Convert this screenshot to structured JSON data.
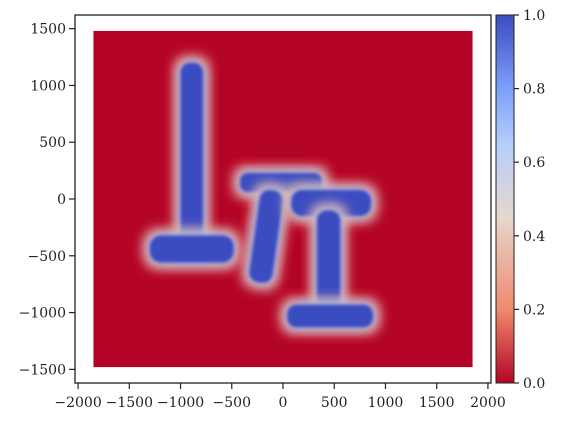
{
  "chart_data": {
    "type": "heatmap",
    "title": "",
    "xlabel": "",
    "ylabel": "",
    "xlim": [
      -2030,
      2030
    ],
    "ylim": [
      -1620,
      1620
    ],
    "xticks": [
      -2000,
      -1500,
      -1000,
      -500,
      0,
      500,
      1000,
      1500,
      2000
    ],
    "yticks": [
      -1500,
      -1000,
      -500,
      0,
      500,
      1000,
      1500
    ],
    "x_tick_labels": [
      "−2000",
      "−1500",
      "−1000",
      "−500",
      "0",
      "500",
      "1000",
      "1500",
      "2000"
    ],
    "y_tick_labels": [
      "−1500",
      "−1000",
      "−500",
      "0",
      "500",
      "1000",
      "1500"
    ],
    "data_extent": {
      "x": [
        -1850,
        1850
      ],
      "y": [
        -1480,
        1480
      ]
    },
    "background_value": 0.0,
    "regions": [
      {
        "shape": "vertical-bar",
        "x": [
          -1000,
          -780
        ],
        "y": [
          -400,
          1200
        ],
        "value": 1.0
      },
      {
        "shape": "horizontal-bar",
        "x": [
          -1300,
          -480
        ],
        "y": [
          -560,
          -320
        ],
        "value": 1.0
      },
      {
        "shape": "horizontal-bar",
        "x": [
          -420,
          380
        ],
        "y": [
          60,
          230
        ],
        "value": 1.0
      },
      {
        "shape": "tilted-bar",
        "x": [
          -280,
          -50
        ],
        "y": [
          -740,
          80
        ],
        "value": 1.0
      },
      {
        "shape": "horizontal-bar",
        "x": [
          80,
          860
        ],
        "y": [
          -150,
          80
        ],
        "value": 1.0
      },
      {
        "shape": "vertical-bar",
        "x": [
          330,
          560
        ],
        "y": [
          -960,
          -100
        ],
        "value": 1.0
      },
      {
        "shape": "horizontal-bar",
        "x": [
          40,
          880
        ],
        "y": [
          -1130,
          -930
        ],
        "value": 1.0
      }
    ],
    "colorbar": {
      "colormap": "coolwarm_r",
      "range": [
        0.0,
        1.0
      ],
      "ticks": [
        0.0,
        0.2,
        0.4,
        0.6,
        0.8,
        1.0
      ],
      "tick_labels": [
        "0.0",
        "0.2",
        "0.4",
        "0.6",
        "0.8",
        "1.0"
      ],
      "colors": [
        "#b40426",
        "#f08a6c",
        "#e6d7cf",
        "#b6cefa",
        "#7da0f9",
        "#3b4cc0"
      ]
    },
    "grid": false
  }
}
